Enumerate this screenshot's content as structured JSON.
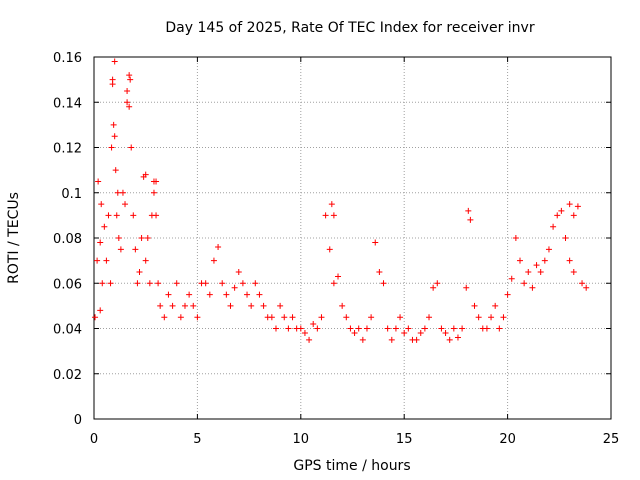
{
  "chart_data": {
    "type": "scatter",
    "title": "Day 145 of 2025, Rate Of TEC Index for receiver invr",
    "xlabel": "GPS time / hours",
    "ylabel": "ROTI / TECUs",
    "xlim": [
      0,
      25
    ],
    "ylim": [
      0,
      0.16
    ],
    "xticks": [
      0,
      5,
      10,
      15,
      20,
      25
    ],
    "yticks": [
      0,
      0.02,
      0.04,
      0.06,
      0.08,
      0.1,
      0.12,
      0.14,
      0.16
    ],
    "grid": true,
    "marker": "+",
    "color": "#ff0000",
    "series": [
      {
        "x": [
          0.05,
          0.15,
          0.2,
          0.3,
          0.35,
          0.4,
          0.5,
          0.6,
          0.7,
          0.8,
          0.85,
          0.9,
          0.95,
          1.0,
          1.05,
          1.1,
          1.15,
          1.2,
          1.3,
          1.4,
          1.5,
          1.6,
          1.7,
          1.75,
          1.8,
          1.9,
          2.0,
          2.1,
          2.2,
          2.3,
          2.4,
          2.5,
          2.6,
          2.7,
          2.8,
          2.9,
          3.0,
          3.1,
          3.2,
          3.4,
          3.6,
          3.8,
          4.0,
          4.2,
          4.4,
          4.6,
          4.8,
          5.0,
          5.2,
          5.4,
          5.6,
          5.8,
          6.0,
          6.2,
          6.4,
          6.6,
          6.8,
          7.0,
          7.2,
          7.4,
          7.6,
          7.8,
          8.0,
          8.2,
          8.4,
          8.6,
          8.8,
          9.0,
          9.2,
          9.4,
          9.6,
          9.8,
          10.0,
          10.2,
          10.4,
          10.6,
          10.8,
          11.0,
          11.2,
          11.4,
          11.6,
          11.8,
          12.0,
          12.2,
          12.4,
          12.6,
          12.8,
          13.0,
          13.2,
          13.4,
          13.6,
          13.8,
          14.0,
          14.2,
          14.4,
          14.6,
          14.8,
          15.0,
          15.2,
          15.4,
          15.6,
          15.8,
          16.0,
          16.2,
          16.4,
          16.6,
          16.8,
          17.0,
          17.2,
          17.4,
          17.6,
          17.8,
          18.0,
          18.2,
          18.4,
          18.6,
          18.8,
          19.0,
          19.2,
          19.4,
          19.6,
          19.8,
          20.0,
          20.2,
          20.4,
          20.6,
          20.8,
          21.0,
          21.2,
          21.4,
          21.6,
          21.8,
          22.0,
          22.2,
          22.4,
          22.6,
          22.8,
          23.0,
          23.2,
          23.4,
          23.6,
          23.8,
          0.3,
          0.9,
          1.0,
          1.6,
          1.7,
          2.5,
          2.9,
          3.0,
          11.5,
          11.6,
          18.1,
          23.0,
          23.2
        ],
        "y": [
          0.045,
          0.07,
          0.105,
          0.078,
          0.095,
          0.06,
          0.085,
          0.07,
          0.09,
          0.06,
          0.12,
          0.15,
          0.13,
          0.125,
          0.11,
          0.09,
          0.1,
          0.08,
          0.075,
          0.1,
          0.095,
          0.145,
          0.138,
          0.15,
          0.12,
          0.09,
          0.075,
          0.06,
          0.065,
          0.08,
          0.107,
          0.07,
          0.08,
          0.06,
          0.09,
          0.105,
          0.09,
          0.06,
          0.05,
          0.045,
          0.055,
          0.05,
          0.06,
          0.045,
          0.05,
          0.055,
          0.05,
          0.045,
          0.06,
          0.06,
          0.055,
          0.07,
          0.076,
          0.06,
          0.055,
          0.05,
          0.058,
          0.065,
          0.06,
          0.055,
          0.05,
          0.06,
          0.055,
          0.05,
          0.045,
          0.045,
          0.04,
          0.05,
          0.045,
          0.04,
          0.045,
          0.04,
          0.04,
          0.038,
          0.035,
          0.042,
          0.04,
          0.045,
          0.09,
          0.075,
          0.06,
          0.063,
          0.05,
          0.045,
          0.04,
          0.038,
          0.04,
          0.035,
          0.04,
          0.045,
          0.078,
          0.065,
          0.06,
          0.04,
          0.035,
          0.04,
          0.045,
          0.038,
          0.04,
          0.035,
          0.035,
          0.038,
          0.04,
          0.045,
          0.058,
          0.06,
          0.04,
          0.038,
          0.035,
          0.04,
          0.036,
          0.04,
          0.058,
          0.088,
          0.05,
          0.045,
          0.04,
          0.04,
          0.045,
          0.05,
          0.04,
          0.045,
          0.055,
          0.062,
          0.08,
          0.07,
          0.06,
          0.065,
          0.058,
          0.068,
          0.065,
          0.07,
          0.075,
          0.085,
          0.09,
          0.092,
          0.08,
          0.07,
          0.065,
          0.094,
          0.06,
          0.058,
          0.048,
          0.148,
          0.158,
          0.14,
          0.152,
          0.108,
          0.1,
          0.105,
          0.095,
          0.09,
          0.092,
          0.095,
          0.09
        ]
      }
    ]
  }
}
